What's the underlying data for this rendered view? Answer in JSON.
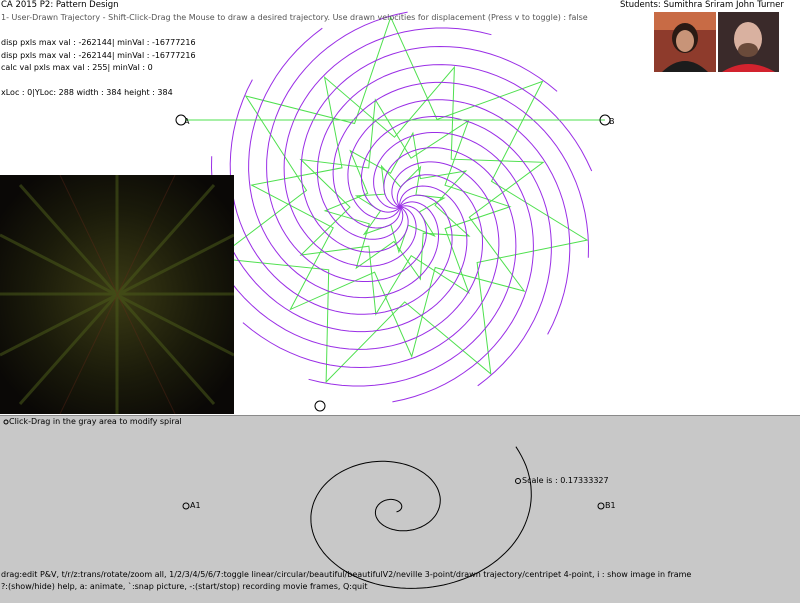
{
  "header": {
    "title": "CA 2015 P2: Pattern Design",
    "students": "Students: Sumithra Sriram John Turner",
    "instruction": "1- User-Drawn Trajectory - Shift-Click-Drag the Mouse to draw a desired trajectory.  Use drawn velocities for displacement (Press v to toggle) :  false"
  },
  "info": {
    "disp_line_1": "disp pxls max val : -262144| minVal : -16777216",
    "disp_line_2": "disp pxls max val : -262144| minVal : -16777216",
    "calc_line": "calc val pxls max val : 255| minVal : 0",
    "loc_line": "xLoc : 0|YLoc: 288 width : 384 height : 384"
  },
  "trajectory": {
    "point_a_label": "A",
    "point_b_label": "B"
  },
  "panel": {
    "tip": "Click-Drag in the gray area to modify spiral",
    "scale_text": "Scale is : 0.17333327",
    "label_a1": "A1",
    "label_b1": "B1"
  },
  "help": {
    "line_1": "drag:edit P&V, t/r/z:trans/rotate/zoom all, 1/2/3/4/5/6/7:toggle linear/circular/beautiful/beautifulV2/neville 3-point/drawn trajectory/centripet 4-point, i : show image in frame",
    "line_2": "?:(show/hide) help, a: animate, `:snap picture, -:(start/stop) recording movie frames, Q:quit"
  },
  "colors": {
    "spiral": "#9a2ee6",
    "star": "#4fe04f",
    "background": "#ffffff",
    "panel": "#c8c8c8"
  }
}
